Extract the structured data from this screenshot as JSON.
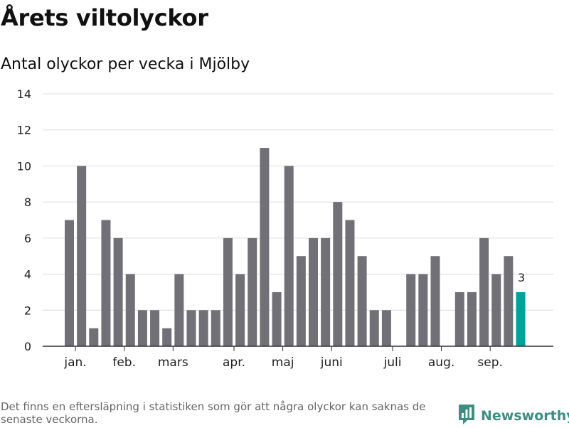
{
  "header": {
    "title": "Årets viltolyckor",
    "subtitle": "Antal olyckor per vecka i Mjölby"
  },
  "footer": {
    "note": "Det finns en eftersläpning i statistiken som gör att några olyckor kan saknas de senaste veckorna.",
    "brand": "Newsworthy"
  },
  "colors": {
    "bar": "#717076",
    "highlight": "#00a19a",
    "grid": "#dcdcdc",
    "axis": "#333333",
    "brand": "#3f8c80"
  },
  "chart_data": {
    "type": "bar",
    "title": "",
    "xlabel": "",
    "ylabel": "",
    "ylim": [
      0,
      14
    ],
    "yticks": [
      0,
      2,
      4,
      6,
      8,
      10,
      12,
      14
    ],
    "grid": true,
    "values": [
      7,
      10,
      1,
      7,
      6,
      4,
      2,
      2,
      1,
      4,
      2,
      2,
      2,
      6,
      4,
      6,
      11,
      3,
      10,
      5,
      6,
      6,
      8,
      7,
      5,
      2,
      2,
      0,
      4,
      4,
      5,
      0,
      3,
      3,
      6,
      4,
      5,
      3
    ],
    "month_labels": [
      {
        "label": "jan.",
        "index": 0.5
      },
      {
        "label": "feb.",
        "index": 4.5
      },
      {
        "label": "mars",
        "index": 8.5
      },
      {
        "label": "apr.",
        "index": 13.5
      },
      {
        "label": "maj",
        "index": 17.5
      },
      {
        "label": "juni",
        "index": 21.5
      },
      {
        "label": "juli",
        "index": 26.5
      },
      {
        "label": "aug.",
        "index": 30.5
      },
      {
        "label": "sep.",
        "index": 34.5
      }
    ],
    "highlight_index": 37,
    "data_labels": [
      {
        "index": 37,
        "text": "3"
      }
    ]
  }
}
